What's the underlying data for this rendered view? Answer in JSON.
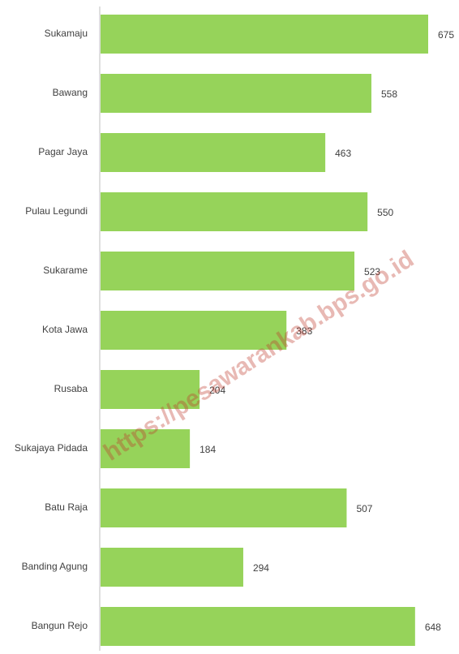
{
  "chart_data": {
    "type": "barh",
    "categories": [
      "Sukamaju",
      "Bawang",
      "Pagar Jaya",
      "Pulau Legundi",
      "Sukarame",
      "Kota Jawa",
      "Rusaba",
      "Sukajaya Pidada",
      "Batu Raja",
      "Banding Agung",
      "Bangun Rejo"
    ],
    "values": [
      675,
      558,
      463,
      550,
      523,
      383,
      204,
      184,
      507,
      294,
      648
    ],
    "color": "#96d35a",
    "watermark": "https://pesawarankab.bps.go.id"
  }
}
